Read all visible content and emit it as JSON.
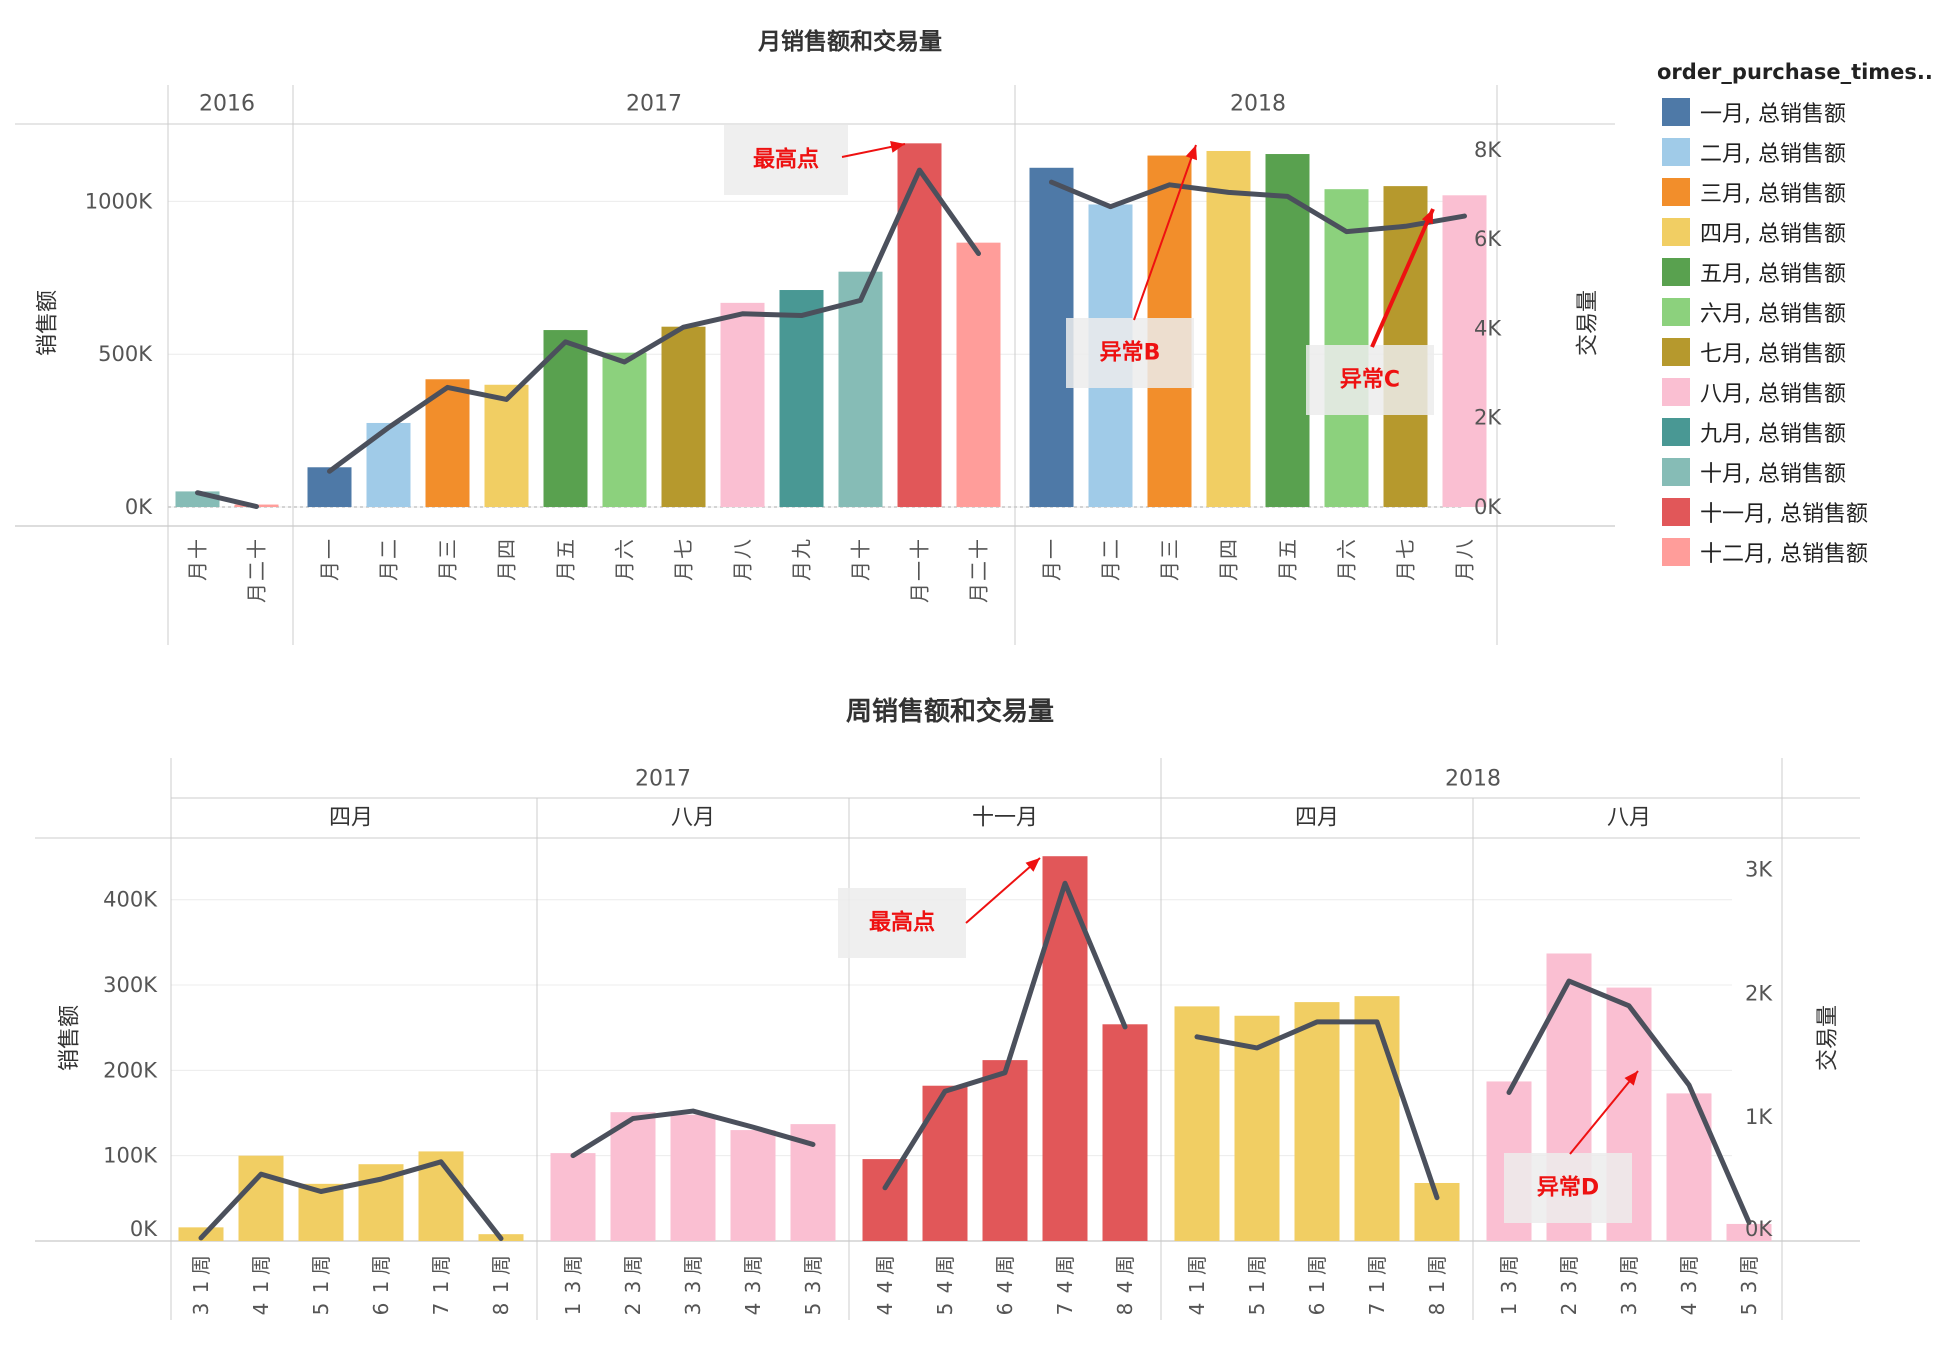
{
  "chart_data": [
    {
      "type": "bar",
      "title": "月销售额和交易量",
      "ylabel": "销售额",
      "y2label": "交易量",
      "ylim": [
        0,
        1250000
      ],
      "y2lim": [
        0,
        8560
      ],
      "yticks": [
        "0K",
        "500K",
        "1000K"
      ],
      "y2ticks": [
        "0K",
        "2K",
        "4K",
        "6K",
        "8K"
      ],
      "groups": [
        {
          "label": "2016",
          "categories": [
            "十月",
            "十二月"
          ],
          "sales": [
            51000,
            8000
          ],
          "orders": [
            320,
            10
          ]
        },
        {
          "label": "2017",
          "categories": [
            "一月",
            "二月",
            "三月",
            "四月",
            "五月",
            "六月",
            "七月",
            "八月",
            "九月",
            "十月",
            "十一月",
            "十二月"
          ],
          "sales": [
            130000,
            275000,
            418000,
            400000,
            579000,
            505000,
            590000,
            668000,
            710000,
            770000,
            1190000,
            865000
          ],
          "orders": [
            800,
            1780,
            2680,
            2410,
            3700,
            3250,
            4030,
            4330,
            4290,
            4630,
            7550,
            5680
          ]
        },
        {
          "label": "2018",
          "categories": [
            "一月",
            "二月",
            "三月",
            "四月",
            "五月",
            "六月",
            "七月",
            "八月"
          ],
          "sales": [
            1110000,
            990000,
            1150000,
            1165000,
            1155000,
            1040000,
            1050000,
            1020000
          ],
          "orders": [
            7280,
            6730,
            7220,
            7050,
            6960,
            6170,
            6290,
            6520
          ]
        }
      ],
      "annotations": [
        "最高点",
        "异常B",
        "异常C"
      ]
    },
    {
      "type": "bar",
      "title": "周销售额和交易量",
      "ylabel": "销售额",
      "y2label": "交易量",
      "ylim": [
        0,
        470000
      ],
      "y2lim": [
        0,
        3240
      ],
      "yticks": [
        "0K",
        "100K",
        "200K",
        "300K",
        "400K"
      ],
      "y2ticks": [
        "0K",
        "1K",
        "2K",
        "3K"
      ],
      "years": [
        "2017",
        "2018"
      ],
      "groups": [
        {
          "year": "2017",
          "month": "四月",
          "color_month": 4,
          "categories": [
            "周 13",
            "周 14",
            "周 15",
            "周 16",
            "周 17",
            "周 18"
          ],
          "sales": [
            16000,
            100000,
            67000,
            90000,
            105000,
            8000
          ],
          "orders": [
            25,
            540,
            400,
            500,
            640,
            20
          ]
        },
        {
          "year": "2017",
          "month": "八月",
          "color_month": 8,
          "categories": [
            "周 31",
            "周 32",
            "周 33",
            "周 34",
            "周 35"
          ],
          "sales": [
            103000,
            151000,
            148000,
            130000,
            137000
          ],
          "orders": [
            690,
            990,
            1050,
            920,
            780
          ]
        },
        {
          "year": "2017",
          "month": "十一月",
          "color_month": 11,
          "categories": [
            "周 44",
            "周 45",
            "周 46",
            "周 47",
            "周 48"
          ],
          "sales": [
            96000,
            182000,
            212000,
            451000,
            254000
          ],
          "orders": [
            430,
            1210,
            1360,
            2890,
            1730
          ]
        },
        {
          "year": "2018",
          "month": "四月",
          "color_month": 4,
          "categories": [
            "周 14",
            "周 15",
            "周 16",
            "周 17",
            "周 18"
          ],
          "sales": [
            275000,
            264000,
            280000,
            287000,
            68000
          ],
          "orders": [
            1650,
            1560,
            1770,
            1770,
            350
          ]
        },
        {
          "year": "2018",
          "month": "八月",
          "color_month": 8,
          "categories": [
            "周 31",
            "周 32",
            "周 33",
            "周 34",
            "周 35"
          ],
          "sales": [
            187000,
            337000,
            297000,
            173000,
            20000
          ],
          "orders": [
            1200,
            2100,
            1900,
            1260,
            150
          ]
        }
      ],
      "annotations": [
        "最高点",
        "异常D"
      ]
    }
  ],
  "legend": {
    "title": "order_purchase_times..",
    "items": [
      {
        "label": "一月, 总销售额",
        "color": "#4e79a7"
      },
      {
        "label": "二月, 总销售额",
        "color": "#a0cbe8"
      },
      {
        "label": "三月, 总销售额",
        "color": "#f28e2b"
      },
      {
        "label": "四月, 总销售额",
        "color": "#f1ce63"
      },
      {
        "label": "五月, 总销售额",
        "color": "#59a14f"
      },
      {
        "label": "六月, 总销售额",
        "color": "#8cd17d"
      },
      {
        "label": "七月, 总销售额",
        "color": "#b6992d"
      },
      {
        "label": "八月, 总销售额",
        "color": "#fabfd2"
      },
      {
        "label": "九月, 总销售额",
        "color": "#499894"
      },
      {
        "label": "十月, 总销售额",
        "color": "#86bcb6"
      },
      {
        "label": "十一月, 总销售额",
        "color": "#e15759"
      },
      {
        "label": "十二月, 总销售额",
        "color": "#ff9d9a"
      }
    ]
  },
  "colors": {
    "line": "#4b505c",
    "annotation_text": "#ee1111",
    "annotation_box": "#ececec",
    "divider": "#cccccc",
    "grid": "#ececec"
  }
}
